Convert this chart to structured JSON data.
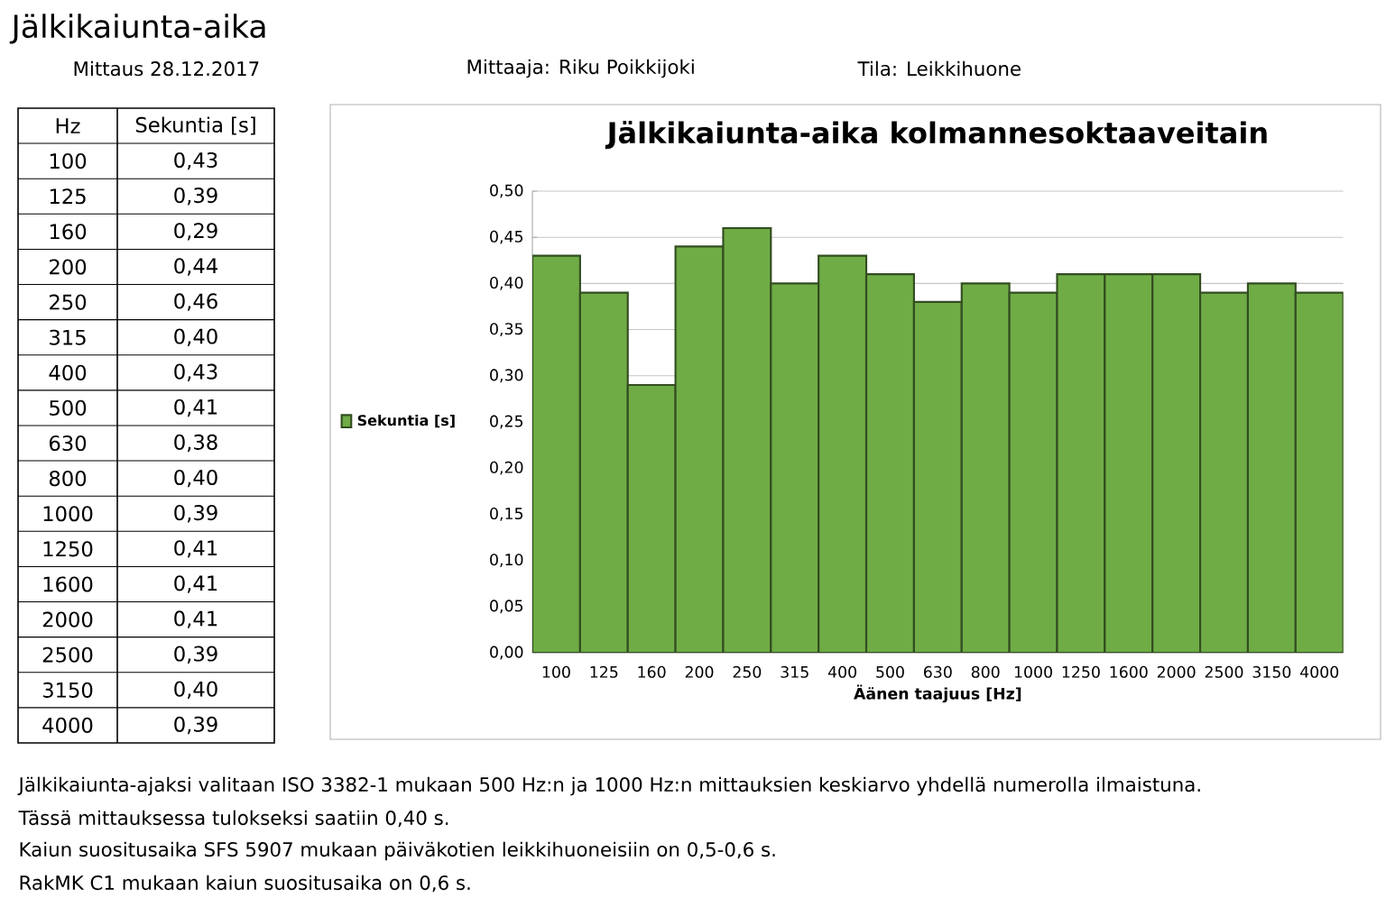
{
  "chart_data": {
    "type": "bar",
    "title": "Jälkikaiunta-aika kolmannesoktaaveitain",
    "xlabel": "Äänen taajuus [Hz]",
    "categories": [
      "100",
      "125",
      "160",
      "200",
      "250",
      "315",
      "400",
      "500",
      "630",
      "800",
      "1000",
      "1250",
      "1600",
      "2000",
      "2500",
      "3150",
      "4000"
    ],
    "series": [
      {
        "name": "Sekuntia [s]",
        "color": "#6fac46",
        "values": [
          0.43,
          0.39,
          0.29,
          0.44,
          0.46,
          0.4,
          0.43,
          0.41,
          0.38,
          0.4,
          0.39,
          0.41,
          0.41,
          0.41,
          0.39,
          0.4,
          0.39
        ]
      }
    ],
    "ylim": [
      0,
      0.5
    ],
    "yticks": [
      {
        "value": 0,
        "label": "0,00"
      },
      {
        "value": 0.05,
        "label": "0,05"
      },
      {
        "value": 0.1,
        "label": "0,10"
      },
      {
        "value": 0.15,
        "label": "0,15"
      },
      {
        "value": 0.2,
        "label": "0,20"
      },
      {
        "value": 0.25,
        "label": "0,25"
      },
      {
        "value": 0.3,
        "label": "0,30"
      },
      {
        "value": 0.35,
        "label": "0,35"
      },
      {
        "value": 0.4,
        "label": "0,40"
      },
      {
        "value": 0.45,
        "label": "0,45"
      },
      {
        "value": 0.5,
        "label": "0,50"
      }
    ],
    "grid": "y",
    "legend": "left",
    "annotations": [
      "Jälkikaiunta-aika",
      "Mittaus 28.12.2017",
      "Mittaaja: Riku Poikkijoki",
      "Tila: Leikkihuone",
      "Jälkikaiunta-ajaksi valitaan ISO 3382-1 mukaan 500 Hz:n ja 1000 Hz:n mittauksien keskiarvo yhdellä numerolla ilmaistuna.",
      "Tässä mittauksessa tulokseksi saatiin  0,40 s.",
      "Kaiun suositusaika SFS 5907 mukaan päiväkotien leikkihuoneisiin on 0,5-0,6 s.",
      "RakMK C1 mukaan kaiun suositusaika on 0,6 s.",
      "Hz",
      "0,43",
      "0,39",
      "0,29",
      "0,44",
      "0,46",
      "0,40",
      "0,43",
      "0,41",
      "0,38",
      "0,40",
      "0,39",
      "0,41",
      "0,41",
      "0,41",
      "0,39",
      "0,40",
      "0,39"
    ]
  }
}
